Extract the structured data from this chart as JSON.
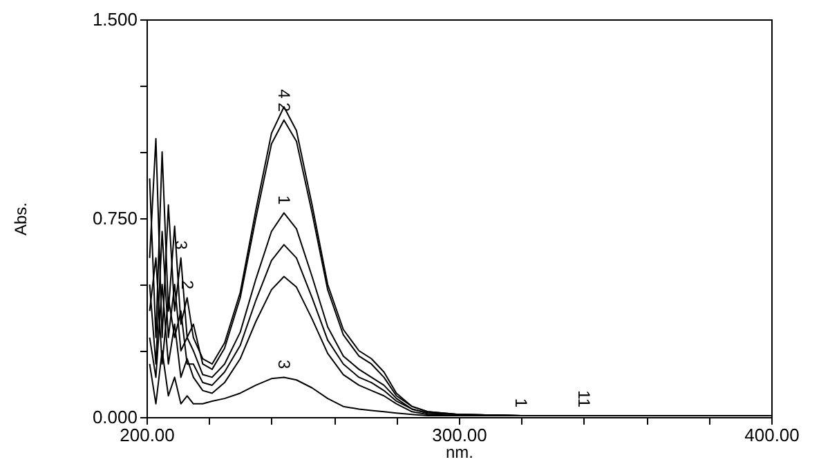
{
  "chart_data": {
    "type": "line",
    "xlabel": "nm.",
    "ylabel": "Abs.",
    "x": [
      201,
      203,
      205,
      207,
      209,
      211,
      213,
      215,
      218,
      221,
      225,
      230,
      235,
      240,
      244,
      248,
      253,
      258,
      263,
      268,
      272,
      276,
      280,
      285,
      290,
      300,
      320,
      340,
      400
    ],
    "series": [
      {
        "color": "#000000",
        "values": [
          0.9,
          0.3,
          1.0,
          0.4,
          0.72,
          0.35,
          0.45,
          0.3,
          0.22,
          0.2,
          0.28,
          0.47,
          0.78,
          1.07,
          1.17,
          1.08,
          0.8,
          0.5,
          0.33,
          0.25,
          0.22,
          0.17,
          0.09,
          0.04,
          0.02,
          0.01,
          0.005,
          0.005,
          0.005
        ]
      },
      {
        "color": "#000000",
        "values": [
          0.6,
          1.05,
          0.3,
          0.8,
          0.4,
          0.6,
          0.3,
          0.35,
          0.2,
          0.18,
          0.26,
          0.45,
          0.75,
          1.03,
          1.12,
          1.04,
          0.77,
          0.48,
          0.31,
          0.23,
          0.2,
          0.15,
          0.08,
          0.04,
          0.02,
          0.01,
          0.005,
          0.005,
          0.005
        ]
      },
      {
        "color": "#000000",
        "values": [
          0.5,
          0.2,
          0.7,
          0.3,
          0.5,
          0.25,
          0.3,
          0.25,
          0.16,
          0.15,
          0.2,
          0.32,
          0.52,
          0.7,
          0.77,
          0.71,
          0.53,
          0.34,
          0.23,
          0.18,
          0.15,
          0.12,
          0.07,
          0.03,
          0.015,
          0.01,
          0.005,
          0.005,
          0.005
        ]
      },
      {
        "color": "#000000",
        "values": [
          0.4,
          0.6,
          0.2,
          0.45,
          0.3,
          0.4,
          0.2,
          0.2,
          0.13,
          0.12,
          0.17,
          0.27,
          0.44,
          0.59,
          0.65,
          0.6,
          0.45,
          0.29,
          0.2,
          0.15,
          0.13,
          0.1,
          0.06,
          0.03,
          0.015,
          0.01,
          0.005,
          0.005,
          0.005
        ]
      },
      {
        "color": "#000000",
        "values": [
          0.3,
          0.15,
          0.5,
          0.2,
          0.35,
          0.15,
          0.22,
          0.15,
          0.1,
          0.09,
          0.13,
          0.22,
          0.36,
          0.48,
          0.53,
          0.49,
          0.37,
          0.24,
          0.16,
          0.12,
          0.1,
          0.08,
          0.05,
          0.02,
          0.01,
          0.005,
          0.005,
          0.005,
          0.005
        ]
      },
      {
        "color": "#000000",
        "values": [
          0.2,
          0.05,
          0.25,
          0.08,
          0.15,
          0.05,
          0.08,
          0.05,
          0.05,
          0.06,
          0.07,
          0.09,
          0.12,
          0.145,
          0.15,
          0.14,
          0.11,
          0.07,
          0.04,
          0.03,
          0.025,
          0.02,
          0.015,
          0.01,
          0.005,
          0.005,
          0.005,
          0.005,
          0.005
        ]
      }
    ],
    "xlim": [
      200,
      400
    ],
    "xticks": [
      {
        "value": 200,
        "label": "200.00"
      },
      {
        "value": 220,
        "label": null
      },
      {
        "value": 240,
        "label": null
      },
      {
        "value": 260,
        "label": null
      },
      {
        "value": 280,
        "label": null
      },
      {
        "value": 300,
        "label": "300.00"
      },
      {
        "value": 320,
        "label": null
      },
      {
        "value": 340,
        "label": null
      },
      {
        "value": 360,
        "label": null
      },
      {
        "value": 380,
        "label": null
      },
      {
        "value": 400,
        "label": "400.00"
      }
    ],
    "ylim": [
      0,
      1.5
    ],
    "yticks": [
      {
        "value": 0,
        "label": "0.000"
      },
      {
        "value": 0.25,
        "label": null
      },
      {
        "value": 0.5,
        "label": null
      },
      {
        "value": 0.75,
        "label": "0.750"
      },
      {
        "value": 1,
        "label": null
      },
      {
        "value": 1.25,
        "label": null
      },
      {
        "value": 1.5,
        "label": "1.500"
      }
    ],
    "annotations": [
      {
        "text": "4",
        "x": 244,
        "y": 1.17
      },
      {
        "text": "2",
        "x": 244,
        "y": 1.12
      },
      {
        "text": "1",
        "x": 244,
        "y": 0.77
      },
      {
        "text": "3",
        "x": 244,
        "y": 0.15
      },
      {
        "text": "3",
        "x": 211,
        "y": 0.6
      },
      {
        "text": "2",
        "x": 213,
        "y": 0.45
      },
      {
        "text": "1",
        "x": 320,
        "y": 0.005
      },
      {
        "text": "11",
        "x": 340,
        "y": 0.005
      }
    ],
    "grid": false,
    "legend": false,
    "marker": "none",
    "line_style": "solid"
  }
}
